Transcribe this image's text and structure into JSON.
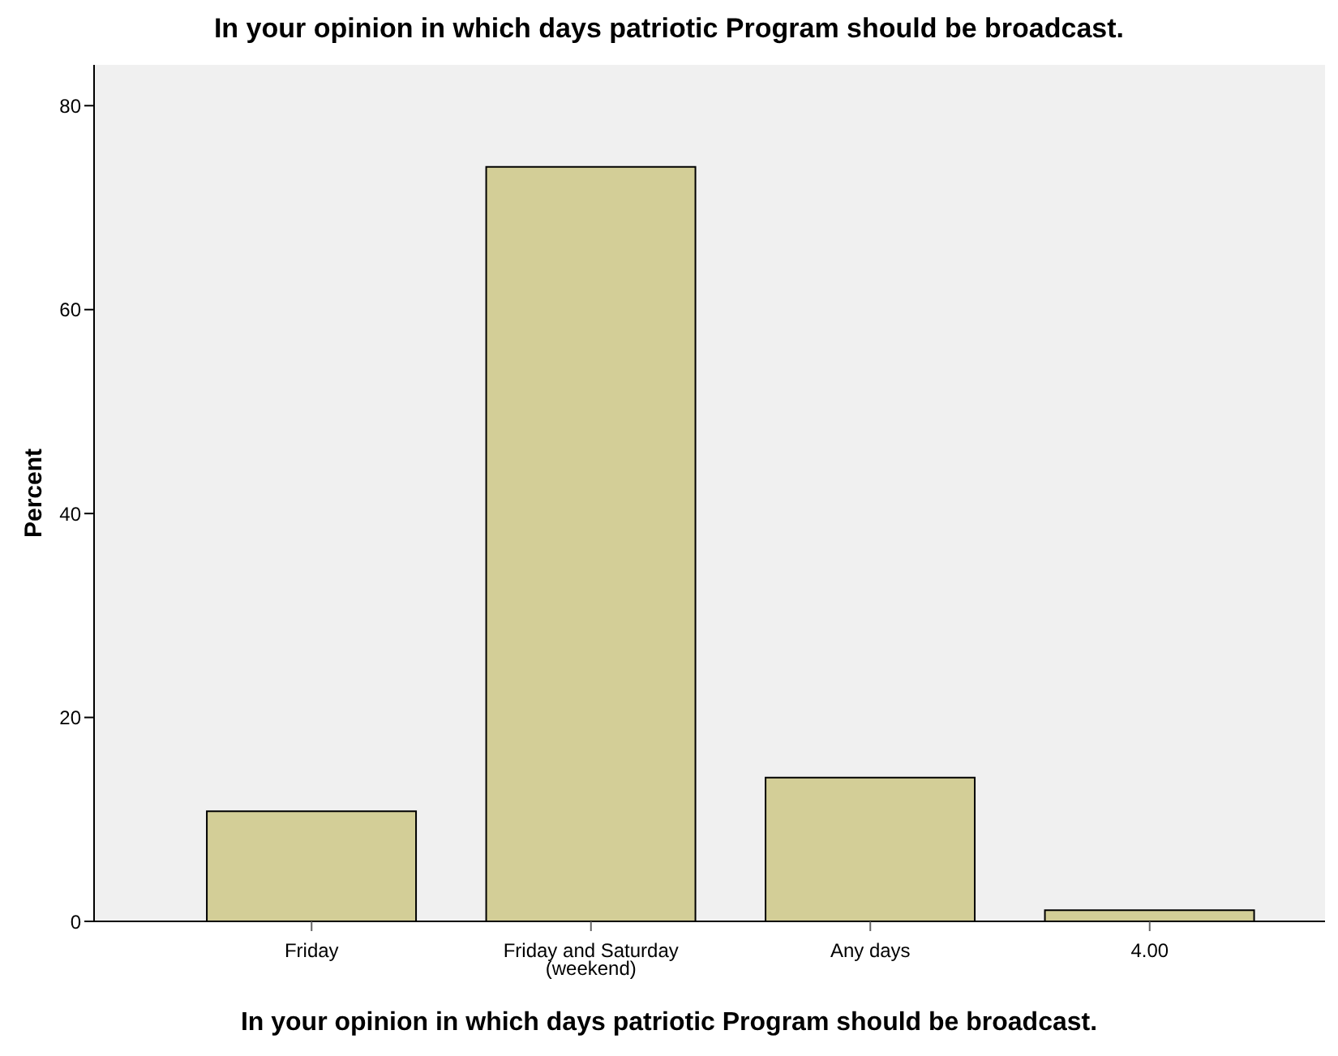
{
  "chart_data": {
    "type": "bar",
    "title": "In your opinion in which days patriotic Program should be broadcast.",
    "xlabel": "In your opinion in which days patriotic Program should be broadcast.",
    "ylabel": "Percent",
    "categories": [
      "Friday",
      "Friday and Saturday (weekend)",
      "Any days",
      "4.00"
    ],
    "values": [
      10.8,
      74.0,
      14.1,
      1.1
    ],
    "color": "#d3ce97",
    "ylim": [
      0,
      84
    ],
    "yticks": [
      0,
      20,
      40,
      60,
      80
    ],
    "grid": false
  }
}
